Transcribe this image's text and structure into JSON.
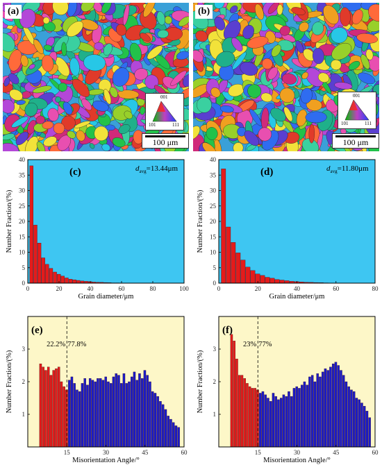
{
  "panels": {
    "a": {
      "tag": "(a)",
      "scale_label": "100 μm",
      "ipf_labels": [
        "001",
        "101",
        "111"
      ]
    },
    "b": {
      "tag": "(b)",
      "scale_label": "100 μm",
      "ipf_labels": [
        "001",
        "101",
        "111"
      ]
    }
  },
  "colors": {
    "bar_red": "#e41b1b",
    "bar_blue": "#1c1cc8",
    "bg_blue": "#3ec6f2",
    "bg_yellow": "#fdf7c8"
  },
  "chart_data": [
    {
      "id": "c",
      "type": "bar",
      "tag": "(c)",
      "annotation": {
        "symbol": "d",
        "sub": "avg",
        "value": "=13.44μm"
      },
      "xlabel": "Grain diameter/μm",
      "ylabel": "Number Fraction/(%)",
      "xlim": [
        0,
        100
      ],
      "ylim": [
        0,
        40
      ],
      "xticks": [
        0,
        20,
        40,
        60,
        80,
        100
      ],
      "yticks": [
        0,
        5,
        10,
        15,
        20,
        25,
        30,
        35,
        40
      ],
      "bin_width": 2.5,
      "bin_start": 2.5,
      "values": [
        38,
        18.8,
        13,
        8.2,
        6.1,
        4.8,
        3.6,
        2.9,
        2.3,
        1.7,
        1.3,
        1.1,
        0.9,
        0.7,
        0.6,
        0.5,
        0.35,
        0.3,
        0.25,
        0.2,
        0.15,
        0.1,
        0.1,
        0.08,
        0.06,
        0.05,
        0.04,
        0.03,
        0.02,
        0.02
      ]
    },
    {
      "id": "d",
      "type": "bar",
      "tag": "(d)",
      "annotation": {
        "symbol": "d",
        "sub": "avg",
        "value": "=11.80μm"
      },
      "xlabel": "Grain diameter/μm",
      "ylabel": "Number Fraction/(%)",
      "xlim": [
        0,
        80
      ],
      "ylim": [
        0,
        40
      ],
      "xticks": [
        0,
        20,
        40,
        60,
        80
      ],
      "yticks": [
        0,
        5,
        10,
        15,
        20,
        25,
        30,
        35,
        40
      ],
      "bin_width": 2.5,
      "bin_start": 2.5,
      "values": [
        37,
        18.2,
        13.2,
        9.8,
        7.5,
        5.2,
        4.1,
        3.0,
        2.5,
        1.9,
        1.6,
        1.2,
        1.0,
        0.8,
        0.6,
        0.5,
        0.4,
        0.3,
        0.25,
        0.2,
        0.15,
        0.1
      ]
    },
    {
      "id": "e",
      "type": "bar",
      "tag": "(e)",
      "xlabel": "Misorientation Angle/°",
      "ylabel": "Number Fraction/(%)",
      "xlim": [
        0,
        60
      ],
      "ylim": [
        0,
        4
      ],
      "xticks": [
        15,
        30,
        45,
        60
      ],
      "yticks": [
        1,
        2,
        3
      ],
      "threshold": 15,
      "low_label": "22.2%",
      "high_label": "77.8%",
      "x": [
        5,
        6,
        7,
        8,
        9,
        10,
        11,
        12,
        13,
        14,
        15,
        16,
        17,
        18,
        19,
        20,
        21,
        22,
        23,
        24,
        25,
        26,
        27,
        28,
        29,
        30,
        31,
        32,
        33,
        34,
        35,
        36,
        37,
        38,
        39,
        40,
        41,
        42,
        43,
        44,
        45,
        46,
        47,
        48,
        49,
        50,
        51,
        52,
        53,
        54,
        55,
        56,
        57,
        58
      ],
      "values": [
        2.55,
        2.45,
        2.35,
        2.45,
        2.2,
        2.35,
        2.4,
        2.45,
        2.0,
        1.85,
        1.75,
        2.05,
        2.15,
        1.95,
        1.75,
        1.7,
        1.95,
        2.1,
        1.9,
        2.1,
        2.05,
        2.0,
        2.1,
        2.1,
        2.05,
        2.15,
        2.0,
        1.95,
        2.15,
        2.25,
        2.2,
        1.95,
        2.25,
        1.95,
        2.0,
        2.15,
        2.3,
        2.05,
        2.25,
        2.1,
        2.35,
        2.2,
        2.0,
        1.7,
        1.65,
        1.55,
        1.4,
        1.3,
        1.15,
        0.95,
        0.85,
        0.75,
        0.65,
        0.6
      ]
    },
    {
      "id": "f",
      "type": "bar",
      "tag": "(f)",
      "xlabel": "Misorientation Angle/°",
      "ylabel": "Number Fraction/(%)",
      "xlim": [
        0,
        60
      ],
      "ylim": [
        0,
        4
      ],
      "xticks": [
        15,
        30,
        45,
        60
      ],
      "yticks": [
        1,
        2,
        3
      ],
      "threshold": 15,
      "low_label": "23%",
      "high_label": "77%",
      "x": [
        5,
        6,
        7,
        8,
        9,
        10,
        11,
        12,
        13,
        14,
        15,
        16,
        17,
        18,
        19,
        20,
        21,
        22,
        23,
        24,
        25,
        26,
        27,
        28,
        29,
        30,
        31,
        32,
        33,
        34,
        35,
        36,
        37,
        38,
        39,
        40,
        41,
        42,
        43,
        44,
        45,
        46,
        47,
        48,
        49,
        50,
        51,
        52,
        53,
        54,
        55,
        56,
        57,
        58
      ],
      "values": [
        3.45,
        3.25,
        2.7,
        2.2,
        2.2,
        2.1,
        1.95,
        1.85,
        1.8,
        1.8,
        1.75,
        1.65,
        1.7,
        1.6,
        1.5,
        1.4,
        1.65,
        1.55,
        1.45,
        1.5,
        1.6,
        1.55,
        1.7,
        1.55,
        1.8,
        1.85,
        1.8,
        1.9,
        2.0,
        1.9,
        2.15,
        2.2,
        2.0,
        2.25,
        2.15,
        2.3,
        2.4,
        2.35,
        2.45,
        2.55,
        2.6,
        2.5,
        2.35,
        2.2,
        2.0,
        1.85,
        1.75,
        1.7,
        1.5,
        1.45,
        1.35,
        1.25,
        1.1,
        0.9
      ]
    }
  ]
}
